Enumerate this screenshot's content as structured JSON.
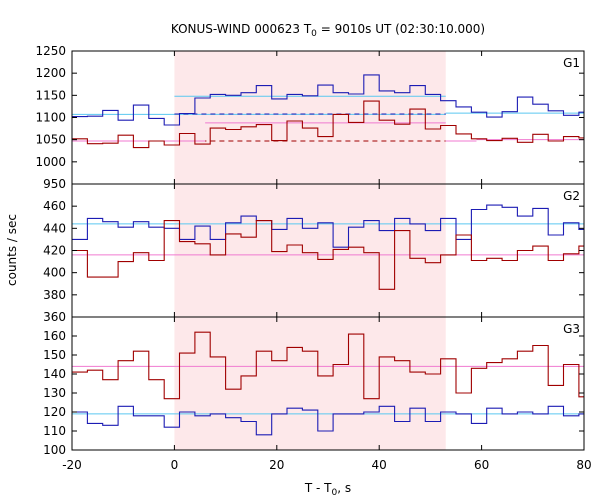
{
  "chart_data": {
    "type": "line",
    "title": "KONUS-WIND 000623 T",
    "title_sub": "0",
    "title_rest": " = 9010s UT (02:30:10.000)",
    "xlabel": "T - T",
    "xlabel_sub": "0",
    "xlabel_rest": ", s",
    "ylabel": "counts / sec",
    "xlim": [
      -20,
      80
    ],
    "x_ticks": [
      -20,
      0,
      20,
      40,
      60,
      80
    ],
    "x_tick_labels": [
      "-20",
      "0",
      "20",
      "40",
      "60",
      "80"
    ],
    "highlight_region": {
      "x": [
        0,
        53
      ],
      "color": "#fde8ea"
    },
    "colors": {
      "blue": "#1c1cb4",
      "red": "#a00000",
      "light_blue": "#5ac8f0",
      "pink": "#f07ad0"
    },
    "panels": [
      {
        "name": "G1",
        "ylim": [
          950,
          1250
        ],
        "y_ticks": [
          950,
          1000,
          1050,
          1100,
          1150,
          1200,
          1250
        ],
        "y_tick_labels": [
          "950",
          "1000",
          "1050",
          "1100",
          "1150",
          "1200",
          "1250"
        ],
        "bin_edges": [
          -20,
          -17,
          -14,
          -11,
          -8,
          -5,
          -2,
          1,
          4,
          7,
          10,
          13,
          16,
          19,
          22,
          25,
          28,
          31,
          34,
          37,
          40,
          43,
          46,
          49,
          52,
          55,
          58,
          61,
          64,
          67,
          70,
          73,
          76,
          79,
          80
        ],
        "series": [
          {
            "color_key": "blue",
            "values": [
              1102,
              1103,
              1116,
              1094,
              1128,
              1098,
              1083,
              1109,
              1144,
              1152,
              1150,
              1156,
              1172,
              1142,
              1152,
              1149,
              1173,
              1156,
              1153,
              1196,
              1160,
              1156,
              1172,
              1152,
              1138,
              1124,
              1112,
              1101,
              1113,
              1146,
              1130,
              1115,
              1105,
              1112
            ]
          },
          {
            "color_key": "red",
            "values": [
              1052,
              1041,
              1042,
              1060,
              1032,
              1047,
              1038,
              1064,
              1040,
              1076,
              1073,
              1079,
              1084,
              1048,
              1092,
              1076,
              1057,
              1107,
              1089,
              1137,
              1094,
              1085,
              1119,
              1074,
              1082,
              1063,
              1052,
              1048,
              1053,
              1044,
              1062,
              1047,
              1057,
              1054
            ]
          }
        ],
        "reference_lines": [
          {
            "color_key": "light_blue",
            "style": "solid",
            "segments": [
              [
                -20,
                53,
                1107
              ],
              [
                0,
                53,
                1148
              ],
              [
                53,
                80,
                1110
              ]
            ]
          },
          {
            "color_key": "blue",
            "style": "dashed",
            "segments": [
              [
                0,
                53,
                1108
              ]
            ]
          },
          {
            "color_key": "red",
            "style": "dashed",
            "segments": [
              [
                0,
                53,
                1047
              ]
            ]
          },
          {
            "color_key": "pink",
            "style": "solid",
            "segments": [
              [
                -20,
                6,
                1047
              ],
              [
                6,
                53,
                1088
              ],
              [
                53,
                59,
                1047
              ],
              [
                59,
                80,
                1050
              ]
            ]
          }
        ]
      },
      {
        "name": "G2",
        "ylim": [
          360,
          480
        ],
        "y_ticks": [
          360,
          380,
          400,
          420,
          440,
          460
        ],
        "y_tick_labels": [
          "360",
          "380",
          "400",
          "420",
          "440",
          "460"
        ],
        "bin_edges": [
          -20,
          -17,
          -14,
          -11,
          -8,
          -5,
          -2,
          1,
          4,
          7,
          10,
          13,
          16,
          19,
          22,
          25,
          28,
          31,
          34,
          37,
          40,
          43,
          46,
          49,
          52,
          55,
          58,
          61,
          64,
          67,
          70,
          73,
          76,
          79,
          80
        ],
        "series": [
          {
            "color_key": "blue",
            "values": [
              430,
              449,
              446,
              441,
              446,
              441,
              440,
              430,
              442,
              430,
              445,
              451,
              447,
              439,
              449,
              440,
              445,
              423,
              441,
              447,
              438,
              449,
              444,
              438,
              449,
              430,
              457,
              461,
              459,
              451,
              458,
              434,
              445,
              439
            ]
          },
          {
            "color_key": "red",
            "values": [
              420,
              396,
              396,
              410,
              418,
              411,
              447,
              428,
              426,
              416,
              435,
              432,
              447,
              419,
              425,
              418,
              412,
              421,
              423,
              418,
              385,
              438,
              413,
              409,
              416,
              434,
              411,
              413,
              411,
              420,
              424,
              411,
              417,
              424
            ]
          }
        ],
        "reference_lines": [
          {
            "color_key": "light_blue",
            "style": "solid",
            "segments": [
              [
                -20,
                80,
                444
              ]
            ]
          },
          {
            "color_key": "pink",
            "style": "solid",
            "segments": [
              [
                -20,
                80,
                416
              ]
            ]
          }
        ]
      },
      {
        "name": "G3",
        "ylim": [
          100,
          170
        ],
        "y_ticks": [
          100,
          110,
          120,
          130,
          140,
          150,
          160
        ],
        "y_tick_labels": [
          "100",
          "110",
          "120",
          "130",
          "140",
          "150",
          "160"
        ],
        "bin_edges": [
          -20,
          -17,
          -14,
          -11,
          -8,
          -5,
          -2,
          1,
          4,
          7,
          10,
          13,
          16,
          19,
          22,
          25,
          28,
          31,
          34,
          37,
          40,
          43,
          46,
          49,
          52,
          55,
          58,
          61,
          64,
          67,
          70,
          73,
          76,
          79,
          80
        ],
        "series": [
          {
            "color_key": "blue",
            "values": [
              120,
              114,
              113,
              123,
              118,
              118,
              112,
              120,
              118,
              119,
              117,
              115,
              108,
              119,
              122,
              121,
              110,
              119,
              119,
              120,
              123,
              115,
              122,
              115,
              120,
              119,
              114,
              122,
              119,
              120,
              119,
              123,
              118,
              119
            ]
          },
          {
            "color_key": "red",
            "values": [
              141,
              142,
              137,
              147,
              152,
              137,
              127,
              151,
              162,
              149,
              132,
              139,
              152,
              147,
              154,
              152,
              139,
              145,
              161,
              127,
              149,
              147,
              141,
              140,
              148,
              130,
              143,
              146,
              148,
              152,
              155,
              134,
              145,
              128
            ]
          }
        ],
        "reference_lines": [
          {
            "color_key": "light_blue",
            "style": "solid",
            "segments": [
              [
                -20,
                80,
                119
              ]
            ]
          },
          {
            "color_key": "pink",
            "style": "solid",
            "segments": [
              [
                -20,
                80,
                144
              ]
            ]
          }
        ]
      }
    ]
  }
}
